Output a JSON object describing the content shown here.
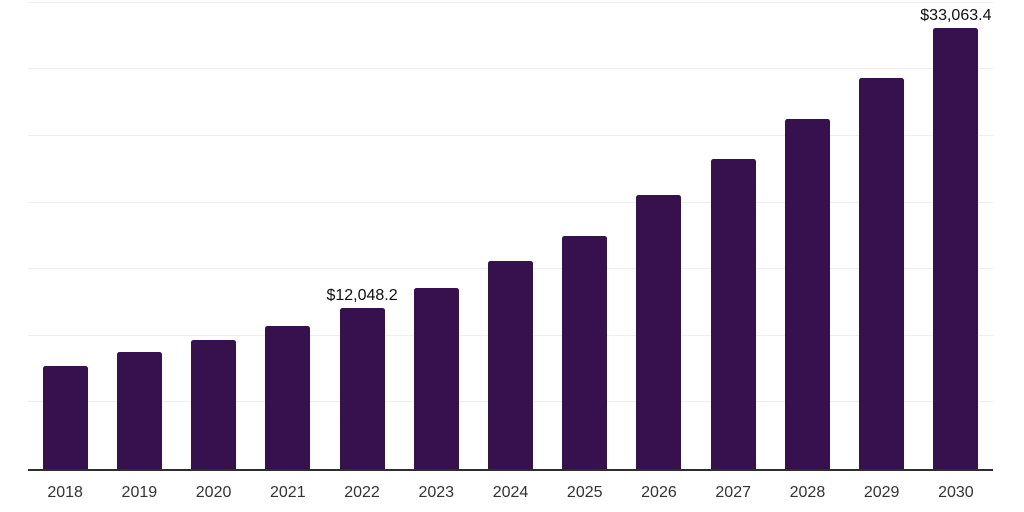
{
  "chart_data": {
    "type": "bar",
    "title": "",
    "xlabel": "",
    "ylabel": "",
    "categories": [
      "2018",
      "2019",
      "2020",
      "2021",
      "2022",
      "2023",
      "2024",
      "2025",
      "2026",
      "2027",
      "2028",
      "2029",
      "2030"
    ],
    "values": [
      7700,
      8800,
      9700,
      10700,
      12048.2,
      13600,
      15600,
      17500,
      20600,
      23300,
      26300,
      29350,
      33063.4
    ],
    "data_labels": [
      null,
      null,
      null,
      null,
      "$12,048.2",
      null,
      null,
      null,
      null,
      null,
      null,
      null,
      "$33,063.4"
    ],
    "ylim": [
      0,
      35000
    ],
    "gridline_step": 5000,
    "grid": "horizontal",
    "legend_position": "none",
    "bar_color": "#36114d",
    "gridline_color": "#efefef",
    "axis_line_color": "#2e2e2e",
    "data_label_color": "#0f0f0f",
    "tick_label_color": "#333333",
    "background_color": "#ffffff"
  }
}
